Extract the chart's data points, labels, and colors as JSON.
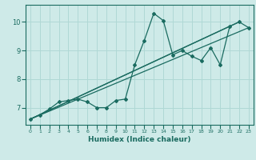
{
  "title": "",
  "xlabel": "Humidex (Indice chaleur)",
  "ylabel": "",
  "bg_color": "#ceeae8",
  "grid_color": "#b0d8d5",
  "line_color": "#1a6b60",
  "xlim": [
    -0.5,
    23.5
  ],
  "ylim": [
    6.4,
    10.6
  ],
  "xticks": [
    0,
    1,
    2,
    3,
    4,
    5,
    6,
    7,
    8,
    9,
    10,
    11,
    12,
    13,
    14,
    15,
    16,
    17,
    18,
    19,
    20,
    21,
    22,
    23
  ],
  "yticks": [
    7,
    8,
    9,
    10
  ],
  "series": [
    [
      0,
      6.6
    ],
    [
      1,
      6.75
    ],
    [
      2,
      6.95
    ],
    [
      3,
      7.2
    ],
    [
      4,
      7.25
    ],
    [
      5,
      7.3
    ],
    [
      6,
      7.2
    ],
    [
      7,
      7.0
    ],
    [
      8,
      7.0
    ],
    [
      9,
      7.25
    ],
    [
      10,
      7.3
    ],
    [
      11,
      8.5
    ],
    [
      12,
      9.35
    ],
    [
      13,
      10.3
    ],
    [
      14,
      10.05
    ],
    [
      15,
      8.85
    ],
    [
      16,
      9.0
    ],
    [
      17,
      8.8
    ],
    [
      18,
      8.65
    ],
    [
      19,
      9.1
    ],
    [
      20,
      8.5
    ],
    [
      21,
      9.85
    ],
    [
      22,
      10.0
    ],
    [
      23,
      9.8
    ]
  ],
  "line2": [
    [
      0,
      6.6
    ],
    [
      23,
      9.8
    ]
  ],
  "line3": [
    [
      0,
      6.6
    ],
    [
      22,
      10.0
    ]
  ],
  "line4": [
    [
      0,
      6.6
    ],
    [
      21,
      9.85
    ]
  ]
}
